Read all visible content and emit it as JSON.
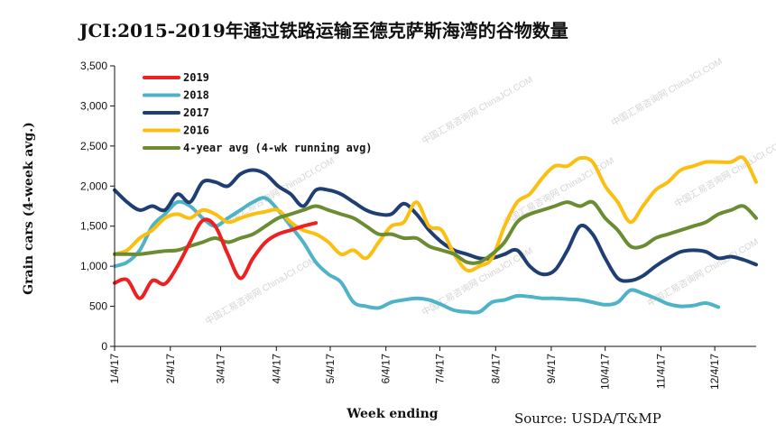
{
  "watermark": "中国汇易咨询网 ChinaJCI.COM",
  "chart_data": {
    "type": "line",
    "title": "JCI:2015-2019年通过铁路运输至德克萨斯海湾的谷物数量",
    "xlabel": "Week ending",
    "ylabel": "Grain cars (4-week avg.)",
    "source": "Source: USDA/T&MP",
    "ylim": [
      0,
      3500
    ],
    "yticks": [
      "0",
      "500",
      "1,000",
      "1,500",
      "2,000",
      "2,500",
      "3,000",
      "3,500"
    ],
    "ytick_values": [
      0,
      500,
      1000,
      1500,
      2000,
      2500,
      3000,
      3500
    ],
    "xlim": [
      0,
      51
    ],
    "xtick_labels": [
      "1/4/17",
      "2/4/17",
      "3/4/17",
      "4/4/17",
      "5/4/17",
      "6/4/17",
      "7/4/17",
      "8/4/17",
      "9/4/17",
      "10/4/17",
      "11/4/17",
      "12/4/17"
    ],
    "xtick_weeks": [
      0,
      4.43,
      8.43,
      12.86,
      17.14,
      21.57,
      25.86,
      30.29,
      34.71,
      39.0,
      43.43,
      47.71
    ],
    "legend_position": "top-left",
    "series": [
      {
        "name": "2019",
        "color": "#ee2020",
        "x": [
          0,
          1,
          2,
          3,
          4,
          5,
          6,
          7,
          8,
          9,
          10,
          11,
          12,
          13,
          14,
          15,
          16
        ],
        "values": [
          790,
          830,
          600,
          820,
          780,
          1000,
          1300,
          1570,
          1500,
          1150,
          850,
          1100,
          1300,
          1400,
          1450,
          1500,
          1540
        ]
      },
      {
        "name": "2018",
        "color": "#4fb3c8",
        "x": [
          0,
          1,
          2,
          3,
          4,
          5,
          6,
          7,
          8,
          9,
          10,
          11,
          12,
          13,
          14,
          15,
          16,
          17,
          18,
          19,
          20,
          21,
          22,
          23,
          24,
          25,
          26,
          27,
          28,
          29,
          30,
          31,
          32,
          33,
          34,
          35,
          36,
          37,
          38,
          39,
          40,
          41,
          42,
          43,
          44,
          45,
          46,
          47,
          48
        ],
        "values": [
          1000,
          1050,
          1200,
          1500,
          1650,
          1800,
          1750,
          1600,
          1500,
          1600,
          1700,
          1800,
          1850,
          1700,
          1500,
          1300,
          1050,
          900,
          800,
          550,
          500,
          480,
          550,
          580,
          600,
          580,
          520,
          450,
          430,
          430,
          550,
          580,
          630,
          620,
          600,
          600,
          590,
          580,
          550,
          520,
          550,
          700,
          660,
          600,
          530,
          500,
          510,
          540,
          490
        ]
      },
      {
        "name": "2017",
        "color": "#1f3f73",
        "x": [
          0,
          1,
          2,
          3,
          4,
          5,
          6,
          7,
          8,
          9,
          10,
          11,
          12,
          13,
          14,
          15,
          16,
          17,
          18,
          19,
          20,
          21,
          22,
          23,
          24,
          25,
          26,
          27,
          28,
          29,
          30,
          31,
          32,
          33,
          34,
          35,
          36,
          37,
          38,
          39,
          40,
          41,
          42,
          43,
          44,
          45,
          46,
          47,
          48,
          49,
          50,
          51
        ],
        "values": [
          1950,
          1800,
          1700,
          1750,
          1700,
          1900,
          1800,
          2050,
          2050,
          2000,
          2150,
          2200,
          2150,
          2000,
          1900,
          1750,
          1950,
          1950,
          1900,
          1800,
          1700,
          1650,
          1650,
          1780,
          1650,
          1450,
          1300,
          1200,
          1150,
          1100,
          1100,
          1150,
          1200,
          1000,
          900,
          950,
          1200,
          1500,
          1400,
          1100,
          850,
          820,
          880,
          1000,
          1100,
          1180,
          1200,
          1180,
          1100,
          1120,
          1080,
          1020
        ]
      },
      {
        "name": "2016",
        "color": "#fbbf12",
        "x": [
          0,
          1,
          2,
          3,
          4,
          5,
          6,
          7,
          8,
          9,
          10,
          11,
          12,
          13,
          14,
          15,
          16,
          17,
          18,
          19,
          20,
          21,
          22,
          23,
          24,
          25,
          26,
          27,
          28,
          29,
          30,
          31,
          32,
          33,
          34,
          35,
          36,
          37,
          38,
          39,
          40,
          41,
          42,
          43,
          44,
          45,
          46,
          47,
          48,
          49,
          50,
          51
        ],
        "values": [
          1150,
          1200,
          1350,
          1450,
          1600,
          1650,
          1600,
          1700,
          1650,
          1550,
          1600,
          1650,
          1680,
          1700,
          1550,
          1450,
          1400,
          1300,
          1150,
          1200,
          1100,
          1300,
          1500,
          1550,
          1800,
          1500,
          1450,
          1150,
          950,
          1000,
          1100,
          1500,
          1800,
          1900,
          2100,
          2250,
          2250,
          2350,
          2300,
          2000,
          1800,
          1550,
          1750,
          1950,
          2050,
          2200,
          2250,
          2300,
          2300,
          2300,
          2350,
          2050
        ]
      },
      {
        "name": "4-year avg (4-wk running avg)",
        "color": "#6b8c32",
        "x": [
          0,
          1,
          2,
          3,
          4,
          5,
          6,
          7,
          8,
          9,
          10,
          11,
          12,
          13,
          14,
          15,
          16,
          17,
          18,
          19,
          20,
          21,
          22,
          23,
          24,
          25,
          26,
          27,
          28,
          29,
          30,
          31,
          32,
          33,
          34,
          35,
          36,
          37,
          38,
          39,
          40,
          41,
          42,
          43,
          44,
          45,
          46,
          47,
          48,
          49,
          50,
          51
        ],
        "values": [
          1150,
          1150,
          1150,
          1170,
          1190,
          1200,
          1250,
          1300,
          1350,
          1300,
          1350,
          1400,
          1500,
          1600,
          1650,
          1700,
          1750,
          1700,
          1650,
          1600,
          1500,
          1400,
          1400,
          1350,
          1350,
          1250,
          1200,
          1150,
          1050,
          1050,
          1150,
          1300,
          1550,
          1650,
          1700,
          1750,
          1800,
          1750,
          1800,
          1600,
          1450,
          1250,
          1250,
          1350,
          1400,
          1450,
          1500,
          1550,
          1650,
          1700,
          1750,
          1600
        ]
      }
    ]
  }
}
